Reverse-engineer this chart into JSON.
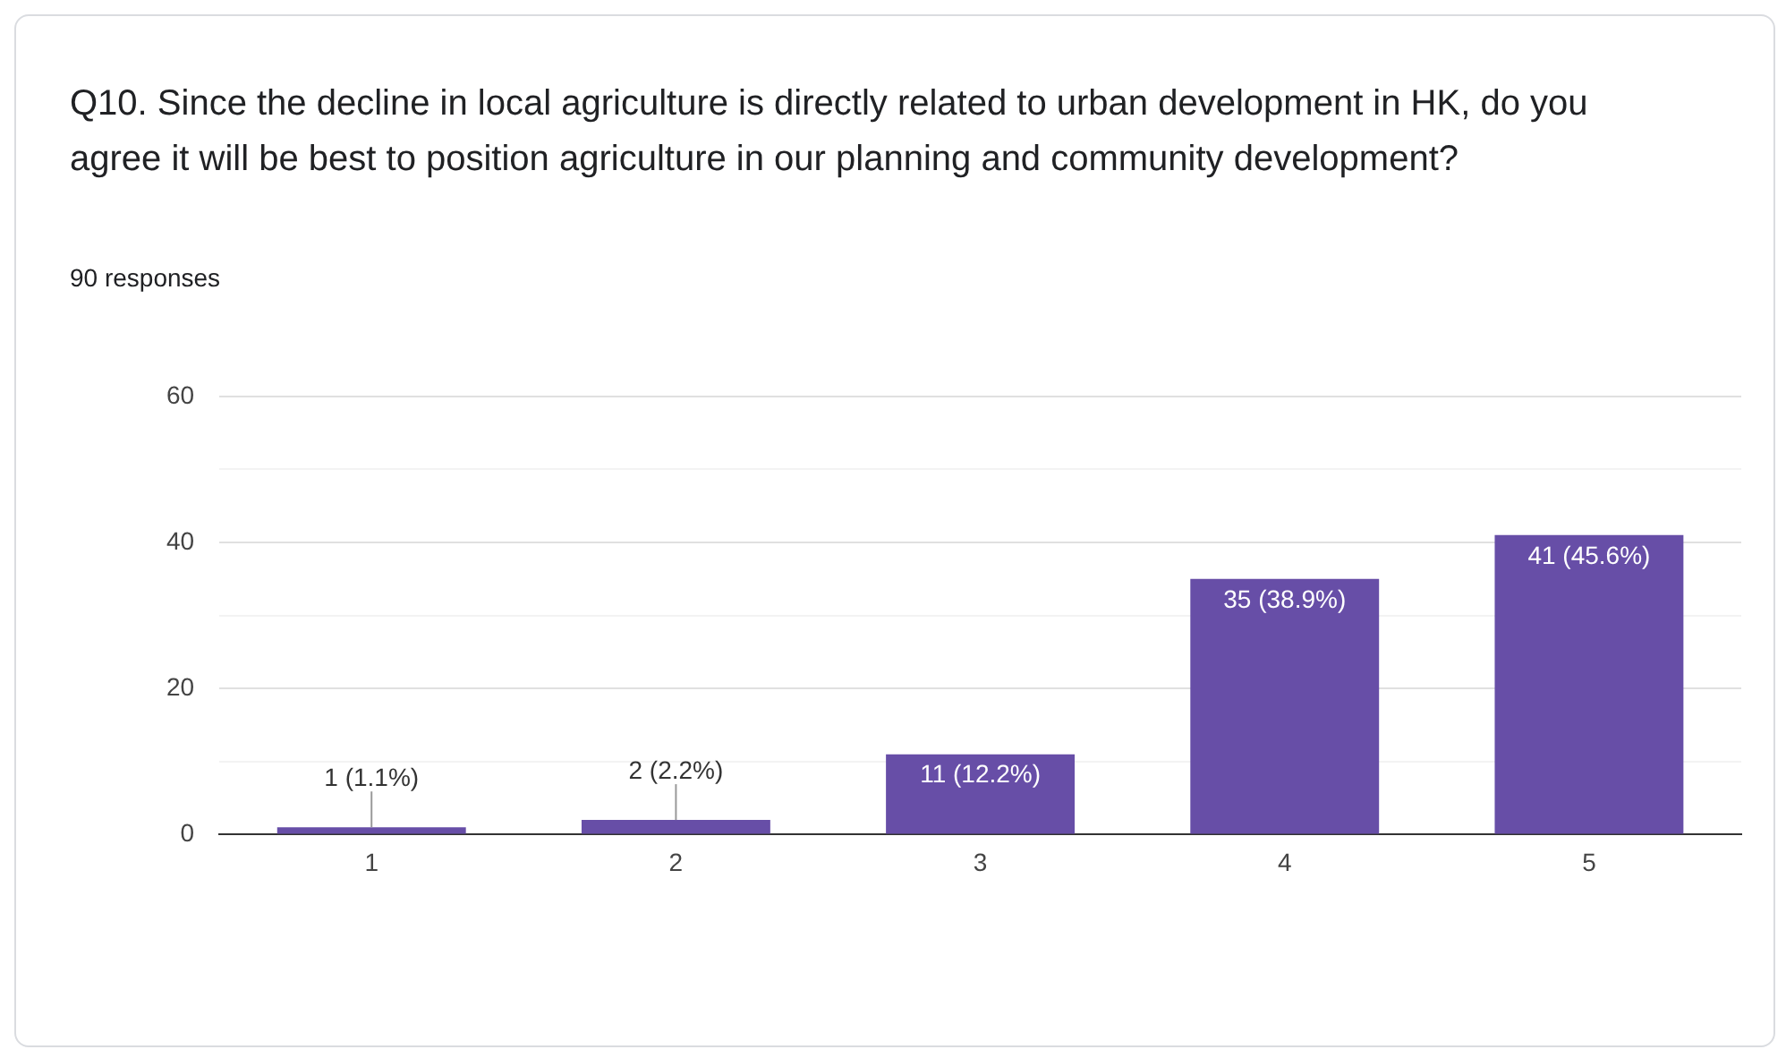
{
  "chart_data": {
    "type": "bar",
    "title": "Q10. Since the decline in local agriculture is directly related to urban development in HK, do you agree it will be best to position agriculture in our planning and community development?",
    "subtitle": "90 responses",
    "categories": [
      "1",
      "2",
      "3",
      "4",
      "5"
    ],
    "values": [
      1,
      2,
      11,
      35,
      41
    ],
    "value_labels": [
      "1 (1.1%)",
      "2 (2.2%)",
      "11 (12.2%)",
      "35 (38.9%)",
      "41 (45.6%)"
    ],
    "color": "#674ea7",
    "ylim": [
      0,
      60
    ],
    "yticks": [
      0,
      {
        "value": 10,
        "label": null
      },
      20,
      {
        "value": 30,
        "label": null
      },
      40,
      {
        "value": 50,
        "label": null
      },
      60
    ],
    "grid": "y",
    "legend": false
  }
}
